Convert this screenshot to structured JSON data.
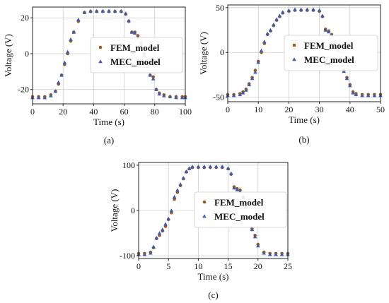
{
  "colors": {
    "fem": "#9a5a1c",
    "mec": "#3b5bb5",
    "grid": "#cfcfcf",
    "frame": "#222222"
  },
  "chart_data": [
    {
      "type": "scatter",
      "panel_label": "(a)",
      "xlabel": "Time (s)",
      "ylabel": "Voltage (V)",
      "xlim": [
        0,
        100
      ],
      "ylim": [
        -28,
        26
      ],
      "xticks": [
        0,
        20,
        40,
        60,
        80,
        100
      ],
      "yticks": [
        -20,
        0,
        20
      ],
      "grid": true,
      "legend_position": "center-right",
      "series": [
        {
          "name": "FEM_model",
          "marker": "circle",
          "x": [
            0,
            4,
            8,
            12,
            15,
            17,
            19,
            21,
            23,
            25,
            27,
            30,
            34,
            38,
            42,
            46,
            50,
            54,
            58,
            61,
            63,
            65,
            67,
            69,
            71,
            73,
            75,
            77,
            79,
            81,
            83,
            86,
            90,
            94,
            98,
            100
          ],
          "y": [
            -24,
            -24,
            -24,
            -23,
            -21,
            -17,
            -12,
            -6,
            0,
            7,
            12,
            18,
            23,
            23.5,
            23.5,
            23.5,
            23.5,
            23.5,
            23.5,
            22,
            18,
            12,
            12,
            10,
            6,
            0,
            -6,
            -12,
            -13,
            -20,
            -22,
            -23,
            -24,
            -24,
            -24,
            -24
          ]
        },
        {
          "name": "MEC_model",
          "marker": "triangle",
          "x": [
            0,
            4,
            8,
            12,
            15,
            17,
            19,
            21,
            23,
            25,
            27,
            30,
            34,
            38,
            42,
            46,
            50,
            54,
            58,
            61,
            63,
            65,
            67,
            69,
            71,
            73,
            75,
            77,
            79,
            81,
            83,
            86,
            90,
            94,
            98,
            100
          ],
          "y": [
            -24.5,
            -24.5,
            -24.5,
            -23.5,
            -21,
            -16,
            -12,
            -5,
            1,
            8,
            12,
            19,
            23,
            23.8,
            23.8,
            23.8,
            23.8,
            23.8,
            23.8,
            22.5,
            18.5,
            12,
            11.5,
            9,
            5,
            -1,
            -7,
            -12,
            -14,
            -20,
            -22.5,
            -23.5,
            -24,
            -24.5,
            -24.5,
            -24.5
          ]
        }
      ]
    },
    {
      "type": "scatter",
      "panel_label": "(b)",
      "xlabel": "Time (s)",
      "ylabel": "Voltage (V)",
      "xlim": [
        0,
        50
      ],
      "ylim": [
        -55,
        53
      ],
      "xticks": [
        0,
        10,
        20,
        30,
        40,
        50
      ],
      "yticks": [
        -50,
        0,
        50
      ],
      "grid": true,
      "legend_position": "center-right",
      "series": [
        {
          "name": "FEM_model",
          "marker": "circle",
          "x": [
            0,
            2,
            4,
            5,
            6,
            7,
            8,
            9,
            10,
            11,
            12,
            13,
            14,
            15,
            16,
            17,
            18,
            20,
            22,
            24,
            26,
            28,
            30,
            31,
            32,
            33,
            34,
            35,
            36,
            37,
            38,
            39,
            40,
            41,
            42,
            44,
            46,
            48,
            50
          ],
          "y": [
            -47,
            -47,
            -46,
            -44,
            -41,
            -35,
            -28,
            -20,
            -10,
            0,
            10,
            20,
            24,
            30,
            36,
            40,
            44,
            46,
            47,
            47,
            47,
            47,
            46,
            40,
            26,
            24,
            20,
            12,
            4,
            -10,
            -20,
            -28,
            -36,
            -44,
            -46,
            -47,
            -47,
            -47,
            -47
          ]
        },
        {
          "name": "MEC_model",
          "marker": "triangle",
          "x": [
            0,
            2,
            4,
            5,
            6,
            7,
            8,
            9,
            10,
            11,
            12,
            13,
            14,
            15,
            16,
            17,
            18,
            20,
            22,
            24,
            26,
            28,
            30,
            31,
            32,
            33,
            34,
            35,
            36,
            37,
            38,
            39,
            40,
            41,
            42,
            44,
            46,
            48,
            50
          ],
          "y": [
            -48,
            -48,
            -47,
            -45,
            -42,
            -36,
            -29,
            -22,
            -11,
            2,
            12,
            21,
            25,
            31,
            37,
            41,
            45,
            47,
            48,
            48,
            48,
            48,
            47,
            41,
            25,
            23,
            19,
            11,
            3,
            -11,
            -21,
            -29,
            -37,
            -45,
            -47,
            -48,
            -48,
            -48,
            -48
          ]
        }
      ]
    },
    {
      "type": "scatter",
      "panel_label": "(c)",
      "xlabel": "Time (s)",
      "ylabel": "Voltage (V)",
      "xlim": [
        0,
        25
      ],
      "ylim": [
        -106,
        106
      ],
      "xticks": [
        0,
        5,
        10,
        15,
        20,
        25
      ],
      "yticks": [
        -100,
        0,
        100
      ],
      "grid": true,
      "legend_position": "center-right",
      "series": [
        {
          "name": "FEM_model",
          "marker": "circle",
          "x": [
            0,
            1,
            2,
            2.5,
            3,
            3.5,
            4,
            4.5,
            5,
            5.5,
            6,
            6.5,
            7,
            7.5,
            8,
            8.5,
            9,
            10,
            11,
            12,
            13,
            14,
            15,
            15.5,
            16,
            16.5,
            17,
            17.5,
            18,
            18.5,
            19,
            19.5,
            20,
            21,
            22,
            23,
            24,
            25
          ],
          "y": [
            -95,
            -95,
            -92,
            -82,
            -62,
            -55,
            -45,
            -35,
            -20,
            -5,
            25,
            40,
            55,
            70,
            85,
            92,
            95,
            95,
            95,
            95,
            95,
            95,
            92,
            80,
            52,
            48,
            45,
            30,
            10,
            -15,
            -40,
            -55,
            -75,
            -92,
            -95,
            -95,
            -95,
            -95
          ]
        },
        {
          "name": "MEC_model",
          "marker": "triangle",
          "x": [
            0,
            1,
            2,
            2.5,
            3,
            3.5,
            4,
            4.5,
            5,
            5.5,
            6,
            6.5,
            7,
            7.5,
            8,
            8.5,
            9,
            10,
            11,
            12,
            13,
            14,
            15,
            15.5,
            16,
            16.5,
            17,
            17.5,
            18,
            18.5,
            19,
            19.5,
            20,
            21,
            22,
            23,
            24,
            25
          ],
          "y": [
            -97,
            -97,
            -94,
            -80,
            -60,
            -50,
            -42,
            -30,
            -18,
            0,
            30,
            45,
            58,
            72,
            86,
            93,
            97,
            97,
            97,
            97,
            97,
            97,
            93,
            82,
            50,
            46,
            42,
            28,
            8,
            -18,
            -42,
            -58,
            -78,
            -94,
            -97,
            -97,
            -97,
            -97
          ]
        }
      ]
    }
  ]
}
